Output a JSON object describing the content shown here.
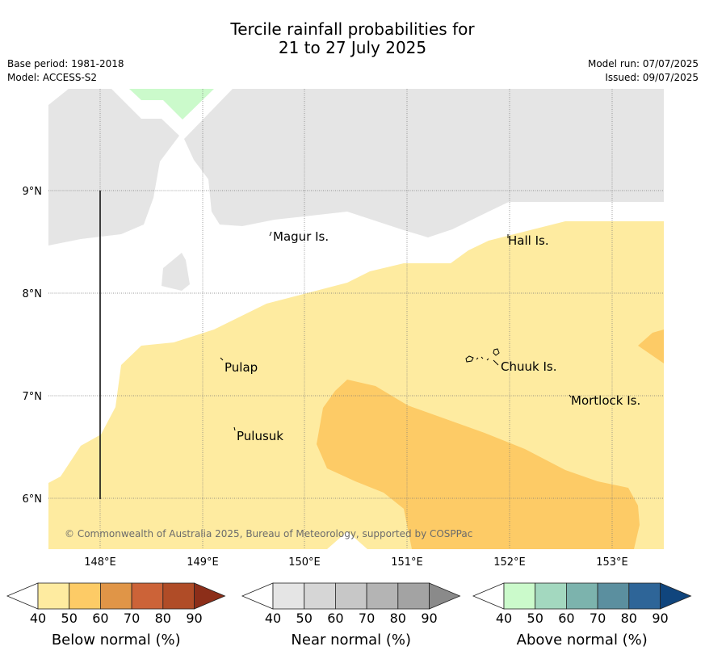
{
  "title": {
    "line1": "Tercile rainfall probabilities for",
    "line2": "21 to 27 July 2025"
  },
  "meta": {
    "base_period": "Base period: 1981-2018",
    "model": "Model: ACCESS-S2",
    "model_run": "Model run: 07/07/2025",
    "issued": "Issued: 09/07/2025"
  },
  "map": {
    "lat_labels": [
      "9°N",
      "8°N",
      "7°N",
      "6°N"
    ],
    "lon_labels": [
      "148°E",
      "149°E",
      "150°E",
      "151°E",
      "152°E",
      "153°E"
    ],
    "places": [
      "Magur Is.",
      "Hall Is.",
      "Pulap",
      "Chuuk Is.",
      "Mortlock Is.",
      "Pulusuk"
    ],
    "copyright": "© Commonwealth of Australia 2025, Bureau of Meteorology, supported by COSPPac",
    "colors": {
      "no_signal": "#e5e5e5",
      "below_50": "#feeba0",
      "below_60": "#fdcb66",
      "above_50": "#cbfacb"
    }
  },
  "legends": [
    {
      "label": "Below normal (%)",
      "ticks": [
        "40",
        "50",
        "60",
        "70",
        "80",
        "90"
      ],
      "colors": [
        "#ffffff",
        "#feeba0",
        "#fdcb66",
        "#e09547",
        "#cc6338",
        "#b04c27",
        "#8c2e19"
      ]
    },
    {
      "label": "Near normal (%)",
      "ticks": [
        "40",
        "50",
        "60",
        "70",
        "80",
        "90"
      ],
      "colors": [
        "#ffffff",
        "#e5e5e5",
        "#d6d6d6",
        "#c7c7c7",
        "#b4b4b4",
        "#a3a3a3",
        "#8a8a8a"
      ]
    },
    {
      "label": "Above normal (%)",
      "ticks": [
        "40",
        "50",
        "60",
        "70",
        "80",
        "90"
      ],
      "colors": [
        "#ffffff",
        "#cbfacb",
        "#a3d8bf",
        "#7cb3ad",
        "#5b8f9f",
        "#2e6598",
        "#10457d"
      ]
    }
  ]
}
